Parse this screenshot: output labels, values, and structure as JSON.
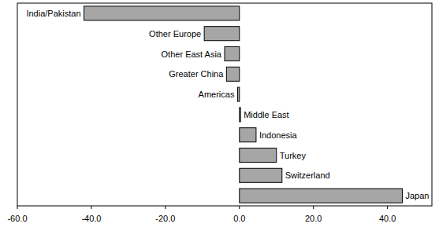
{
  "chart_data": {
    "type": "bar",
    "orientation": "horizontal",
    "categories": [
      "India/Pakistan",
      "Other Europe",
      "Other East Asia",
      "Greater China",
      "Americas",
      "Middle East",
      "Indonesia",
      "Turkey",
      "Switzerland",
      "Japan"
    ],
    "values": [
      -42,
      -9.5,
      -4,
      -3.5,
      -0.5,
      0.3,
      4.5,
      10,
      11.5,
      44
    ],
    "color": "#a6a6a6",
    "xlim": [
      -60,
      52
    ],
    "xticks": [
      {
        "value": -60,
        "label": "-60.0"
      },
      {
        "value": -40,
        "label": "-40.0"
      },
      {
        "value": -20,
        "label": "-20.0"
      },
      {
        "value": 0,
        "label": "0.0"
      },
      {
        "value": 20,
        "label": "20.0"
      },
      {
        "value": 40,
        "label": "40.0"
      }
    ],
    "grid": false
  }
}
